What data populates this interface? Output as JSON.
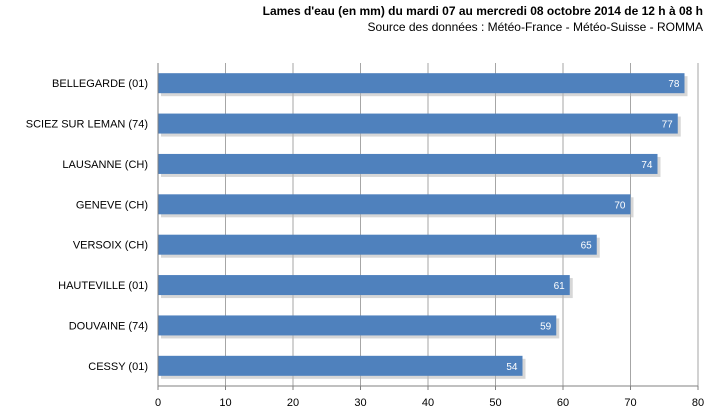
{
  "chart_data": {
    "type": "bar",
    "orientation": "horizontal",
    "title": "Lames d'eau (en mm) du mardi 07 au mercredi 08 octobre 2014 de 12 h à 08 h",
    "subtitle": "Source des données : Météo-France - Météo-Suisse - ROMMA",
    "categories": [
      "BELLEGARDE (01)",
      "SCIEZ SUR LEMAN (74)",
      "LAUSANNE (CH)",
      "GENEVE  (CH)",
      "VERSOIX (CH)",
      "HAUTEVILLE (01)",
      "DOUVAINE (74)",
      "CESSY (01)"
    ],
    "values": [
      78,
      77,
      74,
      70,
      65,
      61,
      59,
      54
    ],
    "xlim": [
      0,
      80
    ],
    "xticks": [
      0,
      10,
      20,
      30,
      40,
      50,
      60,
      70,
      80
    ],
    "grid": true,
    "bar_color": "#4f81bd"
  }
}
